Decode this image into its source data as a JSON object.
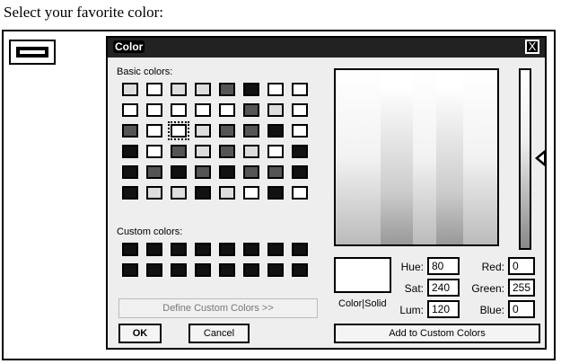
{
  "page": {
    "heading": "Select your favorite color:"
  },
  "dialog": {
    "title": "Color",
    "close_label": "X",
    "basic_colors_label": "Basic colors:",
    "custom_colors_label": "Custom colors:",
    "define_custom_label": "Define Custom Colors >>",
    "ok_label": "OK",
    "cancel_label": "Cancel",
    "add_custom_label": "Add to Custom Colors",
    "color_solid_label": "Color|Solid",
    "hue_label": "Hue:",
    "sat_label": "Sat:",
    "lum_label": "Lum:",
    "red_label": "Red:",
    "green_label": "Green:",
    "blue_label": "Blue:",
    "hue_value": "80",
    "sat_value": "240",
    "lum_value": "120",
    "red_value": "0",
    "green_value": "255",
    "blue_value": "0"
  }
}
